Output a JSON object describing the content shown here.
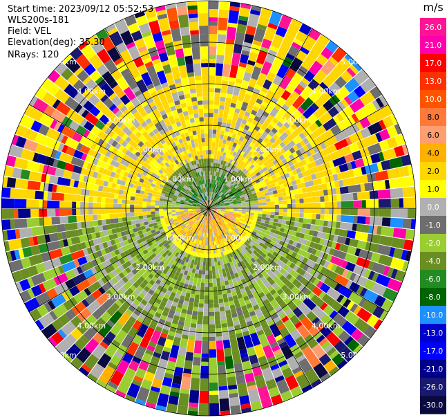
{
  "header": {
    "start_time": "Start time: 2023/09/12 05:52:53",
    "instrument": "WLS200s-181",
    "field": "Field: VEL",
    "elevation": "Elevation(deg): 35.30",
    "nrays": "NRays: 120"
  },
  "chart_data": {
    "type": "heatmap",
    "projection": "polar-ppi",
    "field": "VEL",
    "units": "m/s",
    "n_rays": 120,
    "range_rings_km": [
      1.0,
      2.0,
      3.0,
      4.0,
      5.0
    ],
    "ring_labels": [
      "1.00km",
      "2.00km",
      "3.00km",
      "4.00km",
      "5.00km"
    ],
    "spokes_deg": [
      0,
      30,
      60,
      90,
      120,
      150,
      180,
      210,
      240,
      270,
      300,
      330
    ],
    "colorbar": {
      "label": "m/s",
      "ticks": [
        "26.0",
        "21.0",
        "17.0",
        "13.0",
        "10.0",
        "8.0",
        "6.0",
        "4.0",
        "2.0",
        "1.0",
        "0.0",
        "-1.0",
        "-2.0",
        "-4.0",
        "-6.0",
        "-8.0",
        "-10.0",
        "-13.0",
        "-17.0",
        "-21.0",
        "-26.0",
        "-30.0"
      ],
      "bins": [
        {
          "lo": 26,
          "hi": 30,
          "color": "#ff1493"
        },
        {
          "lo": 21,
          "hi": 26,
          "color": "#ff00aa"
        },
        {
          "lo": 17,
          "hi": 21,
          "color": "#ff0000"
        },
        {
          "lo": 13,
          "hi": 17,
          "color": "#ff3000"
        },
        {
          "lo": 10,
          "hi": 13,
          "color": "#ff5500"
        },
        {
          "lo": 8,
          "hi": 10,
          "color": "#ff7a3a"
        },
        {
          "lo": 6,
          "hi": 8,
          "color": "#ff9e70"
        },
        {
          "lo": 4,
          "hi": 6,
          "color": "#ffb000"
        },
        {
          "lo": 2,
          "hi": 4,
          "color": "#ffd700"
        },
        {
          "lo": 1,
          "hi": 2,
          "color": "#ffff00"
        },
        {
          "lo": 0,
          "hi": 1,
          "color": "#b0b0b0"
        },
        {
          "lo": -1,
          "hi": 0,
          "color": "#6e6e6e"
        },
        {
          "lo": -2,
          "hi": -1,
          "color": "#9acd32"
        },
        {
          "lo": -4,
          "hi": -2,
          "color": "#6b8e23"
        },
        {
          "lo": -6,
          "hi": -4,
          "color": "#228b22"
        },
        {
          "lo": -8,
          "hi": -6,
          "color": "#006400"
        },
        {
          "lo": -10,
          "hi": -8,
          "color": "#1e90ff"
        },
        {
          "lo": -13,
          "hi": -10,
          "color": "#0000cd"
        },
        {
          "lo": -17,
          "hi": -13,
          "color": "#0000ff"
        },
        {
          "lo": -21,
          "hi": -17,
          "color": "#00008b"
        },
        {
          "lo": -26,
          "hi": -21,
          "color": "#191970"
        },
        {
          "lo": -30,
          "hi": -26,
          "color": "#0a0a40"
        }
      ]
    },
    "pattern": {
      "inner_receding_sector_deg": [
        150,
        250
      ],
      "inner_approaching_sector_deg": [
        300,
        60
      ],
      "mid_band_km": [
        1.2,
        3.2
      ],
      "outer_noise_km": [
        3.2,
        5.0
      ],
      "north_half_dominant": "yellow",
      "south_half_dominant": "green"
    }
  }
}
